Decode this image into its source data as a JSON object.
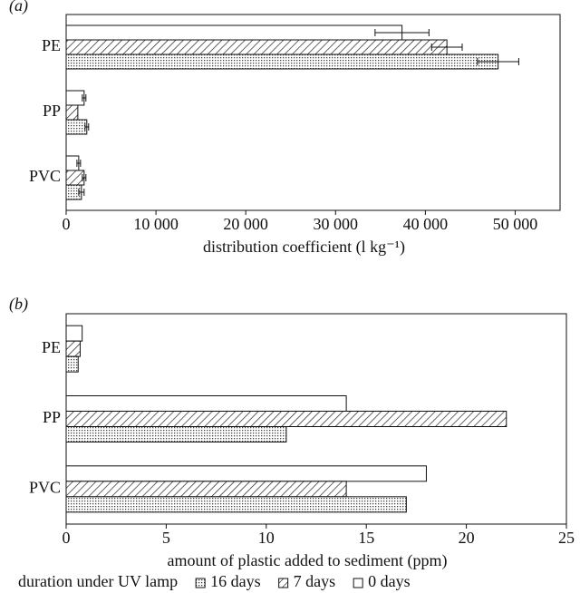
{
  "chart_data": [
    {
      "type": "bar",
      "orientation": "horizontal",
      "panel_label": "(a)",
      "x_label": "distribution coefficient (l kg⁻¹)",
      "categories": [
        "PE",
        "PP",
        "PVC"
      ],
      "series": [
        {
          "name": "0 days",
          "color": "#ffffff",
          "pattern": "none",
          "values": [
            37400,
            2000,
            1400
          ],
          "errors": [
            3000,
            200,
            200
          ]
        },
        {
          "name": "7 days",
          "color": "#ffffff",
          "pattern": "hatch",
          "values": [
            42400,
            1300,
            2000
          ],
          "errors": [
            1700,
            0,
            200
          ]
        },
        {
          "name": "16 days",
          "color": "#ffffff",
          "pattern": "dots",
          "values": [
            48100,
            2300,
            1700
          ],
          "errors": [
            2300,
            200,
            300
          ]
        }
      ],
      "xlim": [
        0,
        55000
      ],
      "xticks": [
        0,
        {
          "value": 10000,
          "label": "10 000"
        },
        {
          "value": 20000,
          "label": "20 000"
        },
        {
          "value": 30000,
          "label": "30 000"
        },
        {
          "value": 40000,
          "label": "40 000"
        },
        {
          "value": 50000,
          "label": "50 000"
        }
      ]
    },
    {
      "type": "bar",
      "orientation": "horizontal",
      "panel_label": "(b)",
      "x_label": "amount of plastic added to sediment (ppm)",
      "categories": [
        "PE",
        "PP",
        "PVC"
      ],
      "series": [
        {
          "name": "0 days",
          "color": "#ffffff",
          "pattern": "none",
          "values": [
            0.8,
            14,
            18
          ]
        },
        {
          "name": "7 days",
          "color": "#ffffff",
          "pattern": "hatch",
          "values": [
            0.7,
            22,
            14
          ]
        },
        {
          "name": "16 days",
          "color": "#ffffff",
          "pattern": "dots",
          "values": [
            0.6,
            11,
            17
          ]
        }
      ],
      "xlim": [
        0,
        25
      ],
      "xticks": [
        0,
        5,
        10,
        15,
        20,
        25
      ],
      "legend_title": "duration under UV lamp",
      "legend": "bottom"
    }
  ]
}
